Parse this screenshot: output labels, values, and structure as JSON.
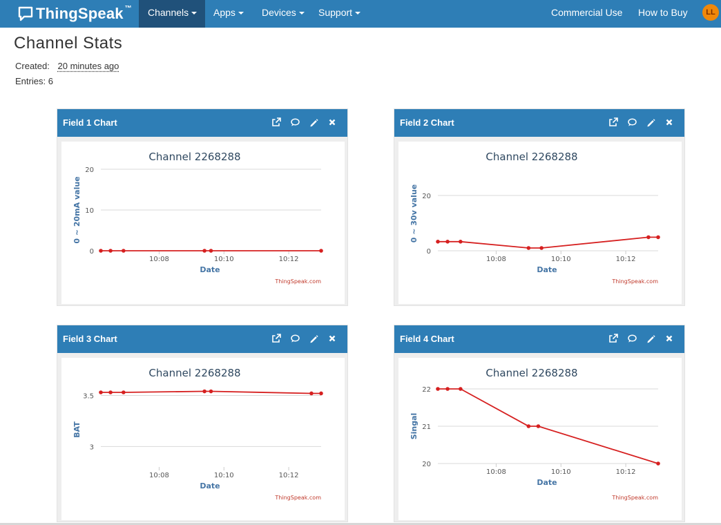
{
  "nav": {
    "brand": "ThingSpeak",
    "brand_tm": "™",
    "items": [
      {
        "label": "Channels",
        "active": true
      },
      {
        "label": "Apps"
      },
      {
        "label": "Devices"
      },
      {
        "label": "Support"
      }
    ],
    "right": [
      {
        "label": "Commercial Use"
      },
      {
        "label": "How to Buy"
      }
    ],
    "avatar": "LL",
    "colors": {
      "bar": "#2e7eb6",
      "active": "#20517a",
      "avatar": "#f0880a"
    }
  },
  "page": {
    "title": "Channel Stats",
    "created_label": "Created:",
    "created_value": "20 minutes ago",
    "entries_label": "Entries:",
    "entries_value": "6"
  },
  "panel_icons": [
    "external-link-icon",
    "comment-icon",
    "pencil-icon",
    "close-icon"
  ],
  "panels": [
    {
      "title": "Field 1 Chart"
    },
    {
      "title": "Field 2 Chart"
    },
    {
      "title": "Field 3 Chart"
    },
    {
      "title": "Field 4 Chart"
    }
  ],
  "chart_data": [
    {
      "type": "line",
      "title": "Channel 2268288",
      "xlabel": "Date",
      "ylabel": "0 ~ 20mA value",
      "x_ticks": [
        "10:08",
        "10:10",
        "10:12"
      ],
      "x_tick_minutes": [
        8,
        10,
        12
      ],
      "xlim": [
        6.2,
        13.0
      ],
      "y_ticks": [
        0,
        10,
        20
      ],
      "ylim": [
        0,
        20
      ],
      "x_minutes": [
        6.2,
        6.5,
        6.9,
        9.4,
        9.6,
        13.0
      ],
      "values": [
        0,
        0,
        0,
        0,
        0,
        0
      ],
      "credit": "ThingSpeak.com",
      "line_color": "#d62020"
    },
    {
      "type": "line",
      "title": "Channel 2268288",
      "xlabel": "Date",
      "ylabel": "0 ~ 30v value",
      "x_ticks": [
        "10:08",
        "10:10",
        "10:12"
      ],
      "x_tick_minutes": [
        8,
        10,
        12
      ],
      "xlim": [
        6.2,
        13.0
      ],
      "y_ticks": [
        0,
        20
      ],
      "ylim": [
        0,
        27
      ],
      "x_minutes": [
        6.2,
        6.5,
        6.9,
        9.0,
        9.4,
        12.7,
        13.0
      ],
      "values": [
        3.3,
        3.3,
        3.3,
        1.0,
        1.0,
        4.9,
        4.9
      ],
      "credit": "ThingSpeak.com",
      "line_color": "#d62020"
    },
    {
      "type": "line",
      "title": "Channel 2268288",
      "xlabel": "Date",
      "ylabel": "BAT",
      "x_ticks": [
        "10:08",
        "10:10",
        "10:12"
      ],
      "x_tick_minutes": [
        8,
        10,
        12
      ],
      "xlim": [
        6.2,
        13.0
      ],
      "y_ticks": [
        3,
        3.5
      ],
      "ylim": [
        2.8,
        3.53
      ],
      "x_minutes": [
        6.2,
        6.5,
        6.9,
        9.4,
        9.6,
        12.7,
        13.0
      ],
      "values": [
        3.53,
        3.53,
        3.53,
        3.54,
        3.54,
        3.52,
        3.52
      ],
      "credit": "ThingSpeak.com",
      "line_color": "#d62020"
    },
    {
      "type": "line",
      "title": "Channel 2268288",
      "xlabel": "Date",
      "ylabel": "Singal",
      "x_ticks": [
        "10:08",
        "10:10",
        "10:12"
      ],
      "x_tick_minutes": [
        8,
        10,
        12
      ],
      "xlim": [
        6.2,
        13.0
      ],
      "y_ticks": [
        20,
        21,
        22
      ],
      "ylim": [
        20,
        22
      ],
      "x_minutes": [
        6.2,
        6.5,
        6.9,
        9.0,
        9.3,
        13.0
      ],
      "values": [
        22,
        22,
        22,
        21,
        21,
        20
      ],
      "credit": "ThingSpeak.com",
      "line_color": "#d62020"
    }
  ]
}
